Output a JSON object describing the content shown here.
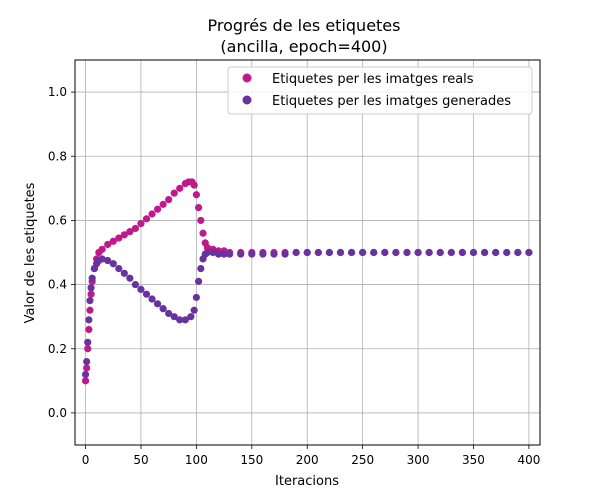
{
  "chart_data": {
    "type": "scatter",
    "title": "Progrés de les etiquetes",
    "subtitle": "(ancilla, epoch=400)",
    "xlabel": "Iteracions",
    "ylabel": "Valor de les etiquetes",
    "xlim": [
      -9.5,
      410
    ],
    "ylim": [
      -0.1,
      1.1
    ],
    "xticks": [
      0,
      50,
      100,
      150,
      200,
      250,
      300,
      350,
      400
    ],
    "yticks": [
      0.0,
      0.2,
      0.4,
      0.6,
      0.8,
      1.0
    ],
    "xtick_labels": [
      "0",
      "50",
      "100",
      "150",
      "200",
      "250",
      "300",
      "350",
      "400"
    ],
    "ytick_labels": [
      "0.0",
      "0.2",
      "0.4",
      "0.6",
      "0.8",
      "1.0"
    ],
    "grid": true,
    "legend_position": "top-right",
    "series": [
      {
        "name": "Etiquetes per les imatges reals",
        "color": "#c0198c",
        "points": [
          [
            0,
            0.1
          ],
          [
            1,
            0.14
          ],
          [
            2,
            0.2
          ],
          [
            3,
            0.26
          ],
          [
            4,
            0.32
          ],
          [
            5,
            0.37
          ],
          [
            6,
            0.41
          ],
          [
            8,
            0.45
          ],
          [
            10,
            0.48
          ],
          [
            12,
            0.5
          ],
          [
            15,
            0.51
          ],
          [
            20,
            0.525
          ],
          [
            25,
            0.535
          ],
          [
            30,
            0.545
          ],
          [
            35,
            0.555
          ],
          [
            40,
            0.565
          ],
          [
            45,
            0.575
          ],
          [
            50,
            0.59
          ],
          [
            55,
            0.605
          ],
          [
            60,
            0.62
          ],
          [
            65,
            0.635
          ],
          [
            70,
            0.65
          ],
          [
            75,
            0.665
          ],
          [
            80,
            0.685
          ],
          [
            85,
            0.7
          ],
          [
            90,
            0.715
          ],
          [
            93,
            0.72
          ],
          [
            96,
            0.72
          ],
          [
            98,
            0.71
          ],
          [
            100,
            0.68
          ],
          [
            102,
            0.64
          ],
          [
            104,
            0.6
          ],
          [
            106,
            0.56
          ],
          [
            108,
            0.53
          ],
          [
            110,
            0.515
          ],
          [
            115,
            0.51
          ],
          [
            120,
            0.505
          ],
          [
            125,
            0.505
          ],
          [
            130,
            0.5
          ],
          [
            140,
            0.5
          ],
          [
            150,
            0.5
          ],
          [
            160,
            0.5
          ],
          [
            170,
            0.5
          ],
          [
            180,
            0.5
          ],
          [
            190,
            0.5
          ],
          [
            200,
            0.5
          ],
          [
            210,
            0.5
          ],
          [
            220,
            0.5
          ],
          [
            230,
            0.5
          ],
          [
            240,
            0.5
          ],
          [
            250,
            0.5
          ],
          [
            260,
            0.5
          ],
          [
            270,
            0.5
          ],
          [
            280,
            0.5
          ],
          [
            290,
            0.5
          ],
          [
            300,
            0.5
          ],
          [
            310,
            0.5
          ],
          [
            320,
            0.5
          ],
          [
            330,
            0.5
          ],
          [
            340,
            0.5
          ],
          [
            350,
            0.5
          ],
          [
            360,
            0.5
          ],
          [
            370,
            0.5
          ],
          [
            380,
            0.5
          ],
          [
            390,
            0.5
          ],
          [
            400,
            0.5
          ]
        ]
      },
      {
        "name": "Etiquetes per les imatges generades",
        "color": "#6a329f",
        "points": [
          [
            0,
            0.12
          ],
          [
            1,
            0.16
          ],
          [
            2,
            0.22
          ],
          [
            3,
            0.29
          ],
          [
            4,
            0.35
          ],
          [
            5,
            0.39
          ],
          [
            6,
            0.42
          ],
          [
            8,
            0.45
          ],
          [
            10,
            0.465
          ],
          [
            12,
            0.475
          ],
          [
            15,
            0.48
          ],
          [
            20,
            0.475
          ],
          [
            25,
            0.465
          ],
          [
            30,
            0.45
          ],
          [
            35,
            0.435
          ],
          [
            40,
            0.42
          ],
          [
            45,
            0.4
          ],
          [
            50,
            0.385
          ],
          [
            55,
            0.37
          ],
          [
            60,
            0.355
          ],
          [
            65,
            0.34
          ],
          [
            70,
            0.325
          ],
          [
            75,
            0.31
          ],
          [
            80,
            0.3
          ],
          [
            85,
            0.29
          ],
          [
            90,
            0.29
          ],
          [
            95,
            0.3
          ],
          [
            98,
            0.32
          ],
          [
            100,
            0.36
          ],
          [
            102,
            0.41
          ],
          [
            104,
            0.45
          ],
          [
            106,
            0.48
          ],
          [
            108,
            0.495
          ],
          [
            110,
            0.5
          ],
          [
            115,
            0.5
          ],
          [
            120,
            0.495
          ],
          [
            125,
            0.495
          ],
          [
            130,
            0.495
          ],
          [
            140,
            0.495
          ],
          [
            150,
            0.495
          ],
          [
            160,
            0.495
          ],
          [
            170,
            0.495
          ],
          [
            180,
            0.495
          ],
          [
            190,
            0.5
          ],
          [
            200,
            0.5
          ],
          [
            210,
            0.5
          ],
          [
            220,
            0.5
          ],
          [
            230,
            0.5
          ],
          [
            240,
            0.5
          ],
          [
            250,
            0.5
          ],
          [
            260,
            0.5
          ],
          [
            270,
            0.5
          ],
          [
            280,
            0.5
          ],
          [
            290,
            0.5
          ],
          [
            300,
            0.5
          ],
          [
            310,
            0.5
          ],
          [
            320,
            0.5
          ],
          [
            330,
            0.5
          ],
          [
            340,
            0.5
          ],
          [
            350,
            0.5
          ],
          [
            360,
            0.5
          ],
          [
            370,
            0.5
          ],
          [
            380,
            0.5
          ],
          [
            390,
            0.5
          ],
          [
            400,
            0.5
          ]
        ]
      }
    ]
  }
}
